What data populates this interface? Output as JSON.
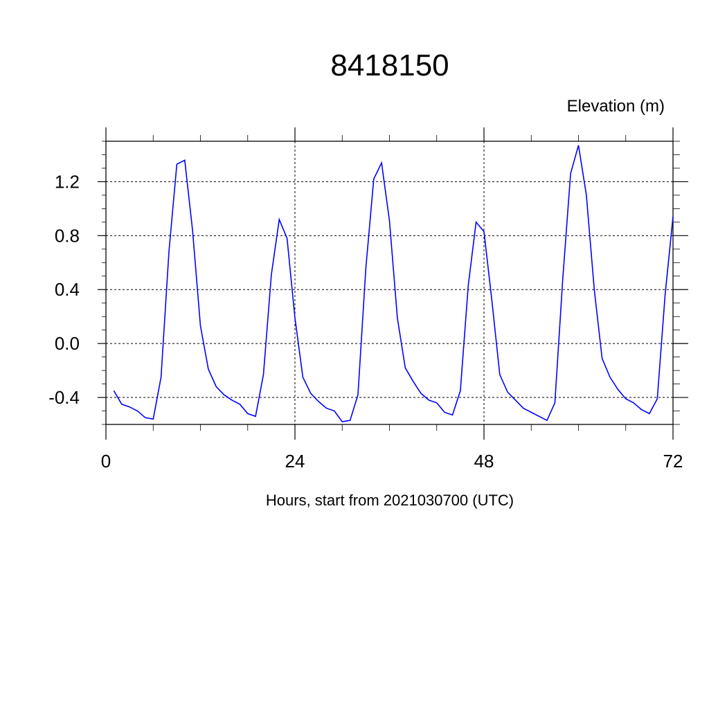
{
  "chart_data": {
    "type": "line",
    "title": "8418150",
    "ylabel": "Elevation (m)",
    "xlabel": "Hours, start from 2021030700 (UTC)",
    "xlim": [
      0,
      72
    ],
    "ylim": [
      -0.6,
      1.5
    ],
    "xticks": [
      0,
      24,
      48,
      72
    ],
    "xtick_labels": [
      "0",
      "24",
      "48",
      "72"
    ],
    "yticks": [
      -0.4,
      0.0,
      0.4,
      0.8,
      1.2
    ],
    "ytick_labels": [
      "-0.4",
      "0.0",
      "0.4",
      "0.8",
      "1.2"
    ],
    "grid": true,
    "line_color": "#0000ff",
    "series": [
      {
        "x": [
          1,
          2,
          3,
          4,
          5,
          6,
          7,
          8,
          9,
          10,
          11,
          12,
          13,
          14,
          15,
          16,
          17,
          18,
          19,
          20,
          21,
          22,
          23,
          24,
          25,
          26,
          27,
          28,
          29,
          30,
          31,
          32,
          33,
          34,
          35,
          36,
          37,
          38,
          39,
          40,
          41,
          42,
          43,
          44,
          45,
          46,
          47,
          48,
          49,
          50,
          51,
          52,
          53,
          54,
          55,
          56,
          57,
          58,
          59,
          60,
          61,
          62,
          63,
          64,
          65,
          66,
          67,
          68,
          69,
          70,
          71,
          72
        ],
        "values": [
          -0.35,
          -0.45,
          -0.47,
          -0.5,
          -0.55,
          -0.56,
          -0.25,
          0.68,
          1.33,
          1.36,
          0.84,
          0.13,
          -0.19,
          -0.32,
          -0.38,
          -0.42,
          -0.45,
          -0.52,
          -0.54,
          -0.23,
          0.51,
          0.92,
          0.78,
          0.19,
          -0.25,
          -0.37,
          -0.43,
          -0.48,
          -0.5,
          -0.58,
          -0.57,
          -0.38,
          0.56,
          1.22,
          1.34,
          0.91,
          0.19,
          -0.18,
          -0.28,
          -0.37,
          -0.42,
          -0.44,
          -0.51,
          -0.53,
          -0.35,
          0.43,
          0.9,
          0.83,
          0.32,
          -0.23,
          -0.36,
          -0.42,
          -0.48,
          -0.51,
          -0.54,
          -0.57,
          -0.44,
          0.48,
          1.26,
          1.47,
          1.1,
          0.4,
          -0.11,
          -0.25,
          -0.34,
          -0.41,
          -0.44,
          -0.49,
          -0.52,
          -0.41,
          0.36,
          0.94
        ]
      }
    ]
  }
}
